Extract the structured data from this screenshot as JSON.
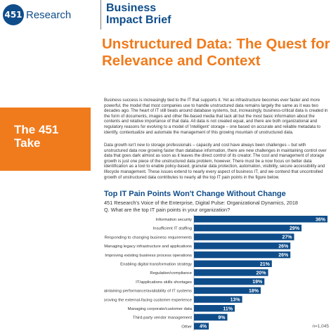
{
  "header": {
    "logo_mark": "451",
    "logo_text": "Research",
    "brief_line1": "Business",
    "brief_line2": "Impact Brief",
    "title_line1": "Unstructured Data: The Quest for",
    "title_line2": "Relevance and Context"
  },
  "sidebar": {
    "line1": "The 451",
    "line2": "Take"
  },
  "body": {
    "paragraph1": "Business success is increasingly tied to the IT that supports it. Yet as infrastructure becomes ever faster and more powerful, the model that most companies use to handle unstructured data remains largely the same as it was two decades ago. The heart of IT still beats around database systems, but, increasingly, business-critical data is created in the form of documents, images and other file-based media that lack all but the most basic information about the contents and relative importance of that data. All data is not created equal, and there are both organizational and regulatory reasons for evolving to a model of 'intelligent' storage – one based on accurate and reliable metadata to identify, contextualize and automate the management of this growing mountain of unstructured data.",
    "paragraph2": "Data growth isn't new to storage professionals – capacity and cost have always been challenges – but with unstructured data now growing faster than database information, there are new challenges in maintaining control over data that goes dark almost as soon as it leaves the direct control of its creator. The cost and management of storage growth is just one piece of the unstructured data problem, however. There must be a now focus on better data identification as a tool to enable policy-based, granular data protection, automation, visibility, secure accessibility and lifecycle management. These issues extend to nearly every aspect of business IT, and we contend that uncontrolled growth of unstructured data contributes to nearly all the top IT pain points in the figure below."
  },
  "chart_data": {
    "type": "bar",
    "orientation": "horizontal",
    "title": "Top IT Pain Points Won't Change Without Change",
    "subtitle": "451 Research's Voice of the Enterprise, Digital Pulse: Organizational Dynamics, 2018",
    "question": "Q. What are the top IT pain points in your organization?",
    "note": "n=1,045",
    "categories": [
      "Information security",
      "Insufficient IT staffing",
      "Responding to changing business requirements",
      "Managing legacy infrastructure and applications",
      "Improving existing business process operations",
      "Enabling digital transformation strategy",
      "Regulation/compliance",
      "IT/applications skills shortages",
      "Maintaining performance/availability of IT systems",
      "Improving the external-facing customer experience",
      "Managing corporate/customer data",
      "Third-party vendor management",
      "Other"
    ],
    "values": [
      36,
      29,
      27,
      26,
      26,
      21,
      20,
      19,
      18,
      13,
      11,
      9,
      4
    ],
    "value_labels": [
      "36%",
      "29%",
      "27%",
      "26%",
      "26%",
      "21%",
      "20%",
      "19%",
      "18%",
      "13%",
      "11%",
      "9%",
      "4%"
    ],
    "xlim": [
      0,
      36
    ],
    "bar_color": "#0f4d8a",
    "grid": false
  }
}
